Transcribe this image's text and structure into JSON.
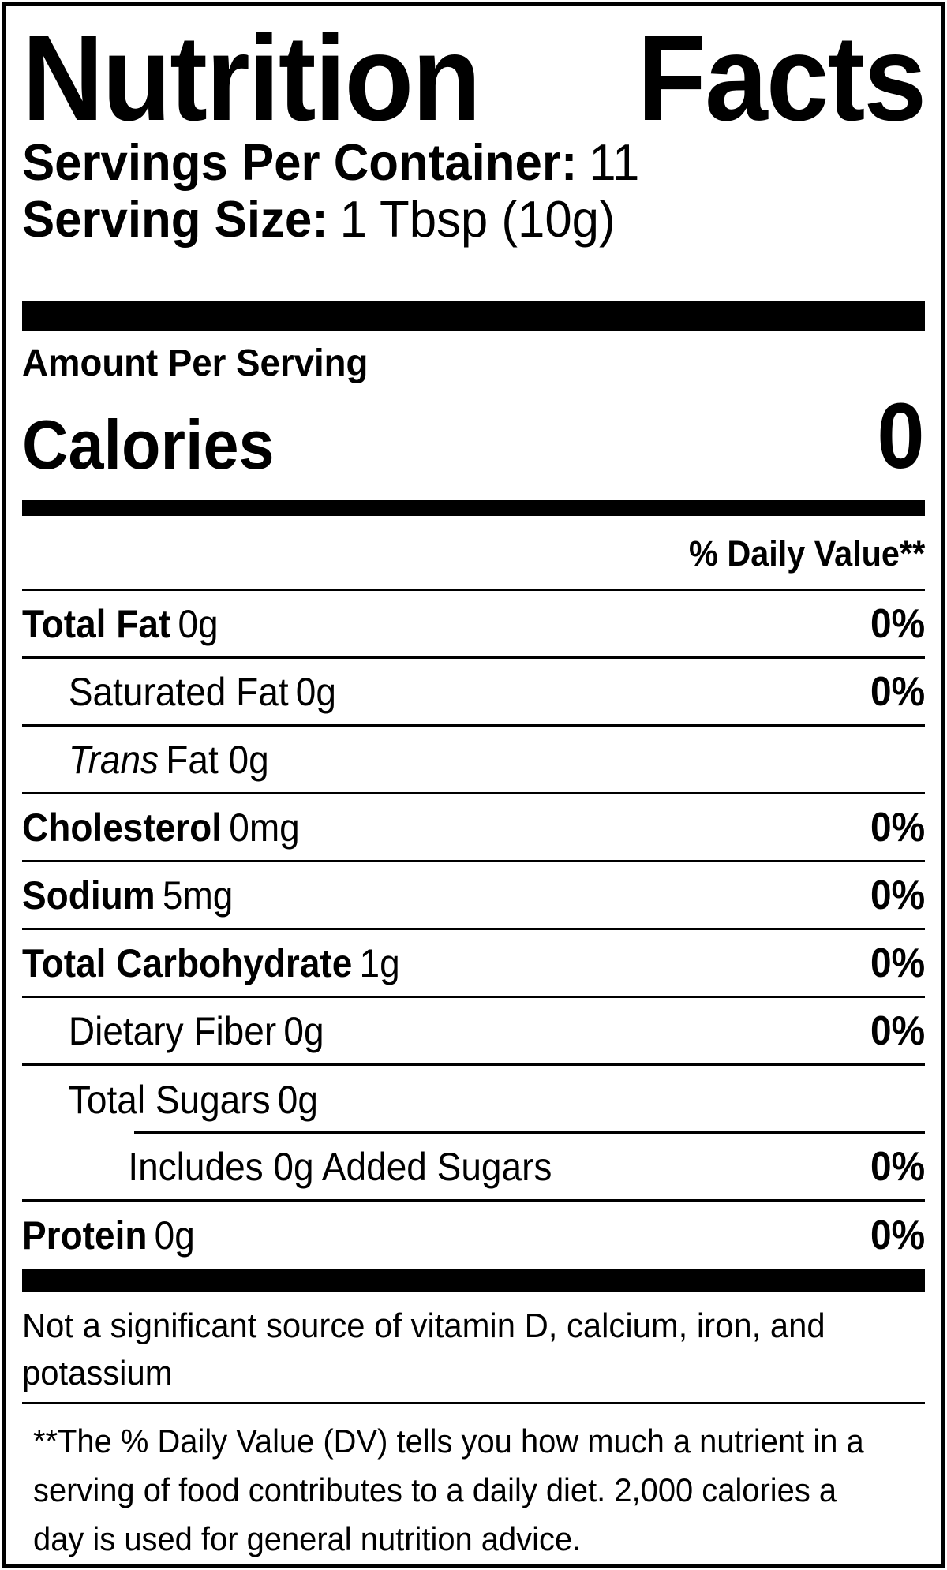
{
  "title": {
    "full": "Nutrition Facts",
    "word1": "Nutrition",
    "word2": "Facts"
  },
  "servings_per_container": {
    "label": "Servings Per Container:",
    "value": "11"
  },
  "serving_size": {
    "label": "Serving Size:",
    "value": "1 Tbsp (10g)"
  },
  "amount_per_serving_label": "Amount Per Serving",
  "calories": {
    "label": "Calories",
    "value": "0"
  },
  "daily_value_header": "% Daily Value**",
  "rows": [
    {
      "name": "Total Fat",
      "amount": "0g",
      "dv": "0%"
    },
    {
      "name": "Saturated Fat",
      "amount": "0g",
      "dv": "0%"
    },
    {
      "name": "Trans",
      "amount": "Fat 0g",
      "dv": ""
    },
    {
      "name": "Cholesterol",
      "amount": "0mg",
      "dv": "0%"
    },
    {
      "name": "Sodium",
      "amount": "5mg",
      "dv": "0%"
    },
    {
      "name": "Total Carbohydrate",
      "amount": "1g",
      "dv": "0%"
    },
    {
      "name": "Dietary Fiber",
      "amount": "0g",
      "dv": "0%"
    },
    {
      "name": "Total Sugars",
      "amount": "0g",
      "dv": ""
    },
    {
      "name": "Includes 0g Added Sugars",
      "amount": "",
      "dv": "0%"
    },
    {
      "name": "Protein",
      "amount": "0g",
      "dv": "0%"
    }
  ],
  "not_significant_note": "Not a significant source of vitamin D, calcium, iron, and potassium",
  "daily_value_footnote": "**The % Daily Value (DV) tells you how much a nutrient in a serving of food contributes to a daily diet. 2,000 calories a day is used for general nutrition advice.",
  "colors": {
    "foreground": "#000000",
    "background": "#ffffff"
  }
}
